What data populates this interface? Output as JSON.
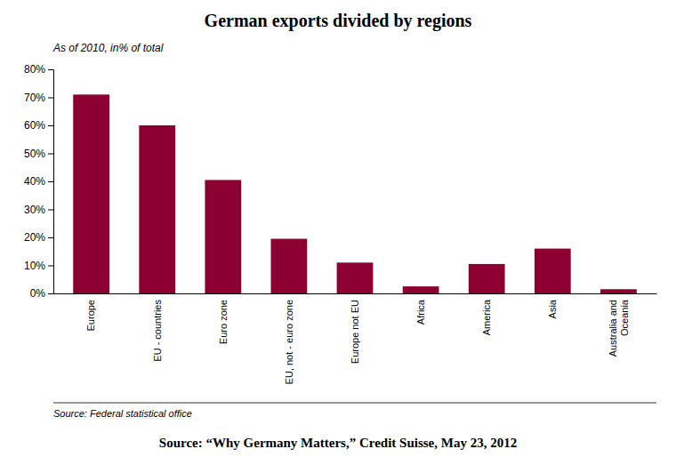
{
  "chart_data": {
    "type": "bar",
    "title": "German exports divided by regions",
    "subtitle": "As of 2010, in% of total",
    "categories": [
      "Europe",
      "EU - countries",
      "Euro zone",
      "EU, not - euro zone",
      "Europe not EU",
      "Africa",
      "America",
      "Asia",
      "Australia and\nOceania"
    ],
    "values": [
      71,
      60,
      40.5,
      19.5,
      11,
      2.5,
      10.5,
      16,
      1.5
    ],
    "color": "#8B0030",
    "ylim": [
      0,
      80
    ],
    "yticks": [
      {
        "value": 0,
        "label": "0%"
      },
      {
        "value": 10,
        "label": "10%"
      },
      {
        "value": 20,
        "label": "20%"
      },
      {
        "value": 30,
        "label": "30%"
      },
      {
        "value": 40,
        "label": "40%"
      },
      {
        "value": 50,
        "label": "50%"
      },
      {
        "value": 60,
        "label": "60%"
      },
      {
        "value": 70,
        "label": "70%"
      },
      {
        "value": 80,
        "label": "80%"
      }
    ],
    "grid": false,
    "annotations": [
      "Source: Federal statistical office",
      "Source: “Why Germany Matters,” Credit Suisse, May 23, 2012"
    ]
  }
}
